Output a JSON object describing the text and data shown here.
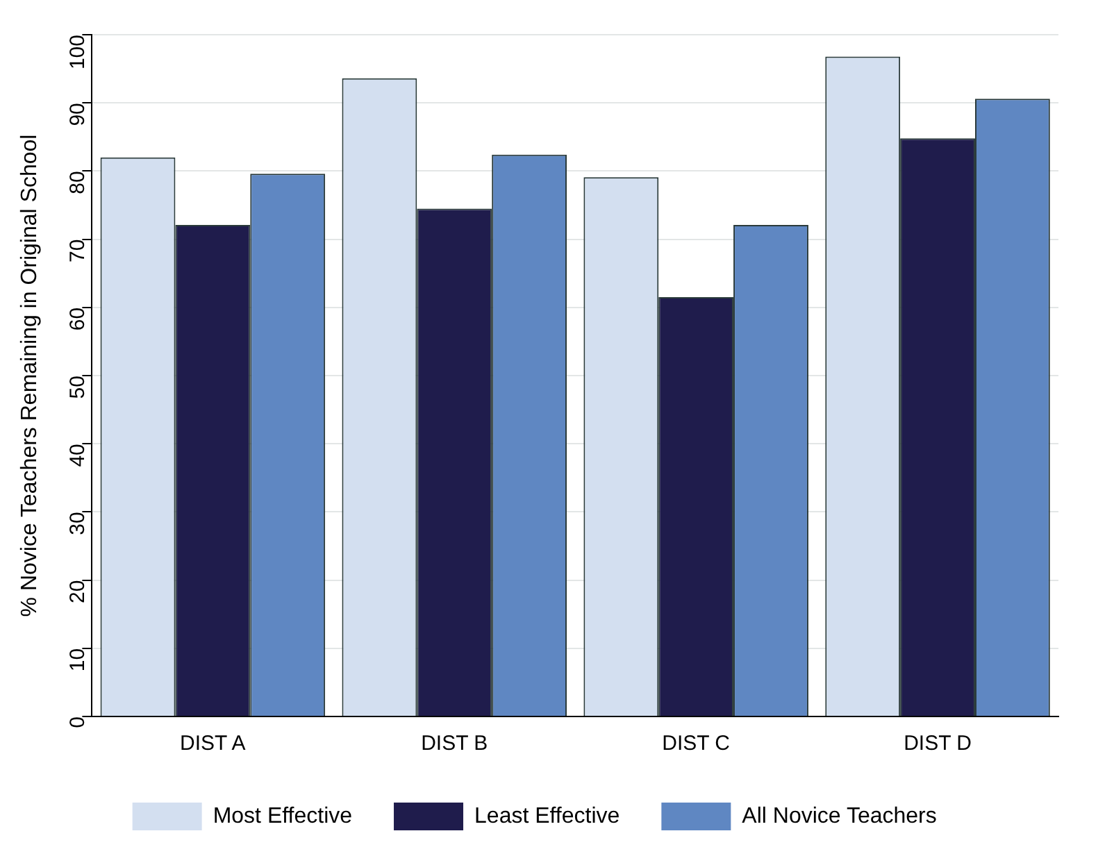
{
  "chart_data": {
    "type": "bar",
    "ylabel": "% Novice Teachers Remaining in Original School",
    "categories": [
      "DIST A",
      "DIST B",
      "DIST C",
      "DIST D"
    ],
    "series": [
      {
        "name": "Most Effective",
        "color": "#d3dff0",
        "values": [
          82,
          93.6,
          79.1,
          96.8
        ]
      },
      {
        "name": "Least Effective",
        "color": "#1f1c4c",
        "values": [
          72.1,
          74.5,
          61.5,
          84.8
        ]
      },
      {
        "name": "All Novice Teachers",
        "color": "#5f87c2",
        "values": [
          79.6,
          82.4,
          72.1,
          90.6
        ]
      }
    ],
    "ylim": [
      0,
      100
    ],
    "yticks": [
      0,
      10,
      20,
      30,
      40,
      50,
      60,
      70,
      80,
      90,
      100
    ],
    "grid": "y",
    "legend": "bottom"
  }
}
